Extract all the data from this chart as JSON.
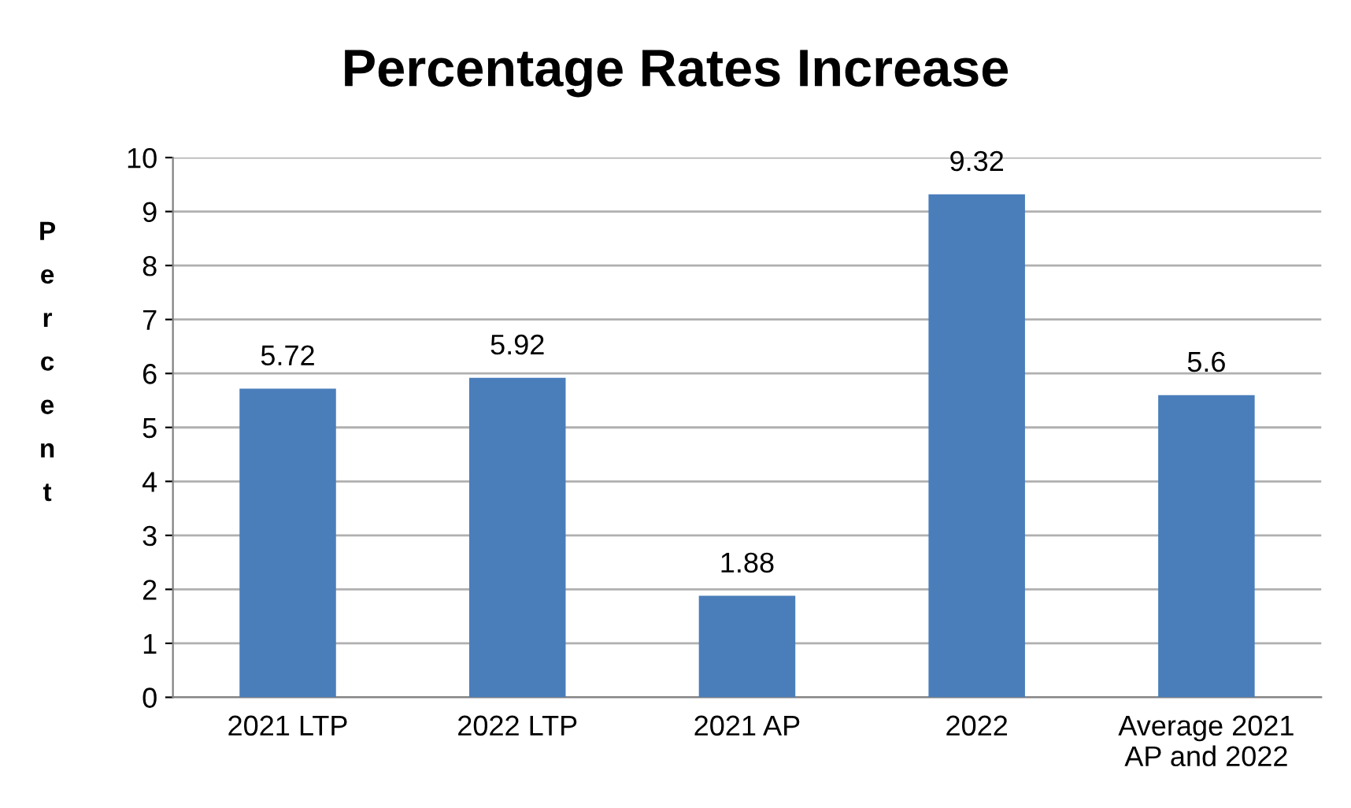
{
  "chart_data": {
    "type": "bar",
    "title": "Percentage Rates Increase",
    "ylabel": "Percent",
    "categories": [
      "2021 LTP",
      "2022 LTP",
      "2021 AP",
      "2022",
      "Average 2021\nAP and 2022"
    ],
    "values": [
      5.72,
      5.92,
      1.88,
      9.32,
      5.6
    ],
    "color": "#4a7ebb",
    "ylim": [
      0,
      10
    ],
    "yticks": [
      0,
      1,
      2,
      3,
      4,
      5,
      6,
      7,
      8,
      9,
      10
    ],
    "grid": "y",
    "data_labels": true,
    "legend": false
  }
}
